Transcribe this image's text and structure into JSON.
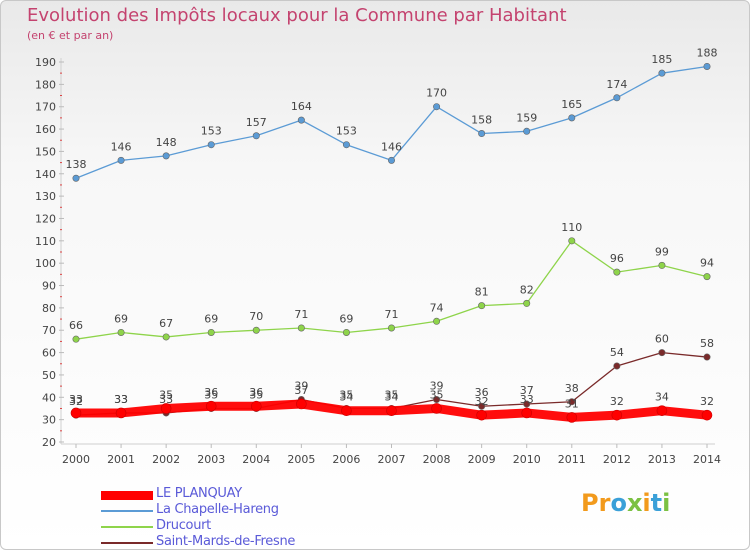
{
  "title": "Evolution des Impôts locaux pour la Commune par Habitant",
  "subtitle": "(en € et par an)",
  "logo": {
    "text": "Proxiti",
    "colors": [
      "#f29a1c",
      "#f29a1c",
      "#3aa0d8",
      "#7bc142",
      "#f29a1c",
      "#3aa0d8",
      "#7bc142"
    ]
  },
  "chart_data": {
    "type": "line",
    "x": [
      "2000",
      "2001",
      "2002",
      "2003",
      "2004",
      "2005",
      "2006",
      "2007",
      "2008",
      "2009",
      "2010",
      "2011",
      "2012",
      "2013",
      "2014"
    ],
    "ylim": [
      20,
      190
    ],
    "yticks": [
      20,
      30,
      40,
      50,
      60,
      70,
      80,
      90,
      100,
      110,
      120,
      130,
      140,
      150,
      160,
      170,
      180,
      190
    ],
    "grid": false,
    "legend_placement": "bottom-left",
    "series": [
      {
        "name": "LE PLANQUAY",
        "color": "#ff0000",
        "values": [
          33,
          33,
          35,
          36,
          36,
          37,
          34,
          34,
          35,
          32,
          33,
          31,
          32,
          34,
          32
        ],
        "labels": [
          "33",
          "33",
          "35",
          "36",
          "36",
          "37",
          "34",
          "34",
          "35",
          "32",
          "33",
          "31",
          "32",
          "34",
          "32"
        ]
      },
      {
        "name": "La Chapelle-Hareng",
        "color": "#5b9bd5",
        "values": [
          138,
          146,
          148,
          153,
          157,
          164,
          153,
          146,
          170,
          158,
          159,
          165,
          174,
          185,
          188
        ],
        "labels": [
          "138",
          "146",
          "148",
          "153",
          "157",
          "164",
          "153",
          "146",
          "170",
          "158",
          "159",
          "165",
          "174",
          "185",
          "188"
        ]
      },
      {
        "name": "Drucourt",
        "color": "#8ed44a",
        "values": [
          66,
          69,
          67,
          69,
          70,
          71,
          69,
          71,
          74,
          81,
          82,
          110,
          96,
          99,
          94
        ],
        "labels": [
          "66",
          "69",
          "67",
          "69",
          "70",
          "71",
          "69",
          "71",
          "74",
          "81",
          "82",
          "110",
          "96",
          "99",
          "94"
        ]
      },
      {
        "name": "Saint-Mards-de-Fresne",
        "color": "#7a2a2a",
        "values": [
          32,
          33,
          33,
          35,
          35,
          39,
          35,
          35,
          39,
          36,
          37,
          38,
          54,
          60,
          58
        ],
        "labels": [
          "32",
          "33",
          "33",
          "35",
          "35",
          "39",
          "35",
          "35",
          "39",
          "36",
          "37",
          "38",
          "54",
          "60",
          "58"
        ]
      }
    ]
  }
}
